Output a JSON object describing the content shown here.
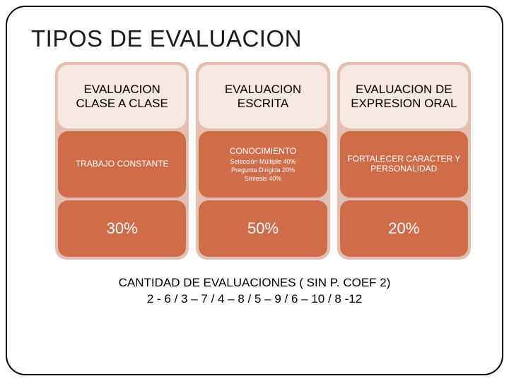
{
  "title": "TIPOS DE EVALUACION",
  "colors": {
    "col_bg": "#e2bfb1",
    "header_bg": "#f5e7e1",
    "body_bg": "#cf6d48",
    "footer_bg": "#cf6d48"
  },
  "columns": [
    {
      "header": "EVALUACION CLASE A CLASE",
      "body_main": "TRABAJO CONSTANTE",
      "body_subs": [],
      "footer": "30%"
    },
    {
      "header": "EVALUACION ESCRITA",
      "body_main": "CONOCIMIENTO",
      "body_subs": [
        "Selección Múltiple 40%",
        "Pregunta Dirigida 20%",
        "Síntesis 40%"
      ],
      "footer": "50%"
    },
    {
      "header": "EVALUACION DE EXPRESION ORAL",
      "body_main": "FORTALECER CARACTER Y PERSONALIDAD",
      "body_subs": [],
      "footer": "20%"
    }
  ],
  "footnote_line1": "CANTIDAD DE EVALUACIONES ( SIN P. COEF 2)",
  "footnote_line2": "2  - 6  /    3 – 7 /  4 – 8 /   5 – 9 /  6 – 10 /  8 -12"
}
